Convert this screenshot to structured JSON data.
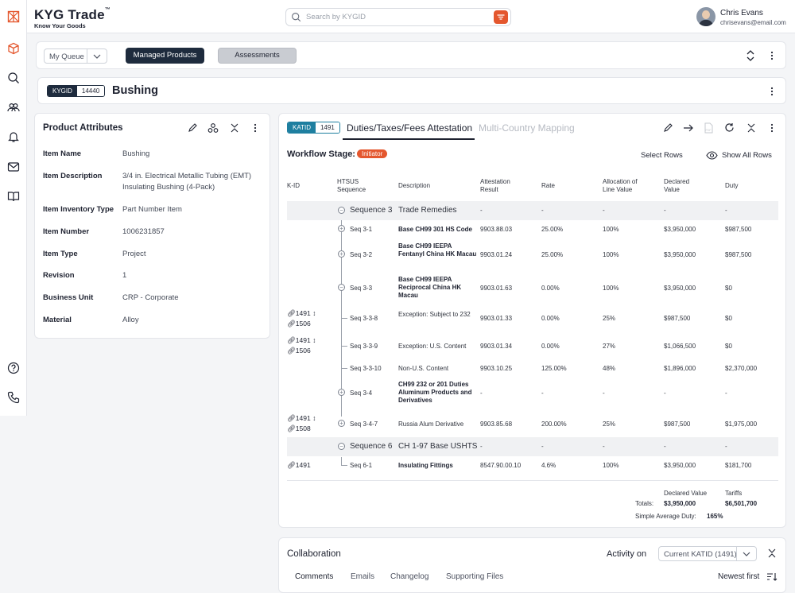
{
  "brand": {
    "name": "KYG Trade",
    "tm": "™",
    "tagline": "Know Your Goods"
  },
  "search": {
    "placeholder": "Search by KYGID"
  },
  "user": {
    "name": "Chris Evans",
    "email": "chrisevans@email.com"
  },
  "nav_icons": [
    "logo-icon",
    "box-icon",
    "search-icon",
    "users-icon",
    "bell-icon",
    "mail-icon",
    "book-icon",
    "help-icon",
    "phone-icon"
  ],
  "toolbar": {
    "queue": "My Queue",
    "managed": "Managed Products",
    "assessments": "Assessments"
  },
  "product": {
    "kygid_label": "KYGID",
    "kygid": "14440",
    "name": "Bushing"
  },
  "attributes": {
    "title": "Product Attributes",
    "items": [
      {
        "label": "Item Name",
        "value": "Bushing"
      },
      {
        "label": "Item Description",
        "value": "3/4 in. Electrical Metallic Tubing (EMT) Insulating Bushing (4-Pack)"
      },
      {
        "label": "Item Inventory Type",
        "value": "Part Number Item"
      },
      {
        "label": "Item Number",
        "value": "1006231857"
      },
      {
        "label": "Item Type",
        "value": "Project"
      },
      {
        "label": "Revision",
        "value": "1"
      },
      {
        "label": "Business Unit",
        "value": "CRP - Corporate"
      },
      {
        "label": "Material",
        "value": "Alloy"
      }
    ]
  },
  "duties": {
    "katid_label": "KATID",
    "katid": "1491",
    "tab_active": "Duties/Taxes/Fees Attestation",
    "tab_inactive": "Multi-Country Mapping",
    "stage_label": "Workflow Stage:",
    "stage": "Initiator",
    "select_rows": "Select Rows",
    "show_all": "Show All Rows",
    "columns": [
      "K-ID",
      "HTSUS\nSequence",
      "Description",
      "Attestation\nResult",
      "Rate",
      "Allocation of\nLine Value",
      "Declared\nValue",
      "Duty"
    ],
    "rows": [
      {
        "seq": "Sequence 3",
        "desc": "Trade Remedies",
        "att": "-",
        "rate": "-",
        "alloc": "-",
        "decl": "-",
        "duty": "-"
      },
      {
        "seq": "Seq 3-1",
        "desc": "Base CH99 301 HS Code",
        "att": "9903.88.03",
        "rate": "25.00%",
        "alloc": "100%",
        "decl": "$3,950,000",
        "duty": "$987,500"
      },
      {
        "seq": "Seq 3-2",
        "desc": "Base CH99 IEEPA Fentanyl China HK Macau",
        "att": "9903.01.24",
        "rate": "25.00%",
        "alloc": "100%",
        "decl": "$3,950,000",
        "duty": "$987,500"
      },
      {
        "seq": "Seq 3-3",
        "desc": "Base CH99 IEEPA Reciprocal China HK Macau",
        "att": "9903.01.63",
        "rate": "0.00%",
        "alloc": "100%",
        "decl": "$3,950,000",
        "duty": "$0"
      },
      {
        "kid1": "1491",
        "kid2": "1506",
        "seq": "Seq 3-3-8",
        "desc": "Exception: Subject to 232",
        "att": "9903.01.33",
        "rate": "0.00%",
        "alloc": "25%",
        "decl": "$987,500",
        "duty": "$0"
      },
      {
        "kid1": "1491",
        "kid2": "1506",
        "seq": "Seq 3-3-9",
        "desc": "Exception: U.S. Content",
        "att": "9903.01.34",
        "rate": "0.00%",
        "alloc": "27%",
        "decl": "$1,066,500",
        "duty": "$0"
      },
      {
        "seq": "Seq 3-3-10",
        "desc": "Non-U.S. Content",
        "att": "9903.10.25",
        "rate": "125.00%",
        "alloc": "48%",
        "decl": "$1,896,000",
        "duty": "$2,370,000"
      },
      {
        "seq": "Seq 3-4",
        "desc": "CH99 232 or 201 Duties Aluminum Products and Derivatives",
        "att": "-",
        "rate": "-",
        "alloc": "-",
        "decl": "-",
        "duty": "-"
      },
      {
        "kid1": "1491",
        "kid2": "1508",
        "seq": "Seq 3-4-7",
        "desc": "Russia Alum Derivative",
        "att": "9903.85.68",
        "rate": "200.00%",
        "alloc": "25%",
        "decl": "$987,500",
        "duty": "$1,975,000"
      },
      {
        "seq": "Sequence 6",
        "desc": "CH 1-97 Base USHTS",
        "att": "-",
        "rate": "-",
        "alloc": "-",
        "decl": "-",
        "duty": "-"
      },
      {
        "kid1": "1491",
        "seq": "Seq 6-1",
        "desc": "Insulating Fittings",
        "att": "8547.90.00.10",
        "rate": "4.6%",
        "alloc": "100%",
        "decl": "$3,950,000",
        "duty": "$181,700"
      }
    ],
    "totals": {
      "decl_label": "Declared Value",
      "tariffs_label": "Tariffs",
      "totals_label": "Totals:",
      "decl": "$3,950,000",
      "tariffs": "$6,501,700",
      "avg_label": "Simple Average Duty:",
      "avg": "165%"
    }
  },
  "collaboration": {
    "title": "Collaboration",
    "activity_label": "Activity on",
    "activity_value": "Current KATID (1491)",
    "tabs": [
      "Comments",
      "Emails",
      "Changelog",
      "Supporting Files"
    ],
    "sort": "Newest first"
  },
  "colors": {
    "accent": "#e4572e",
    "navy": "#1e2b3d"
  }
}
